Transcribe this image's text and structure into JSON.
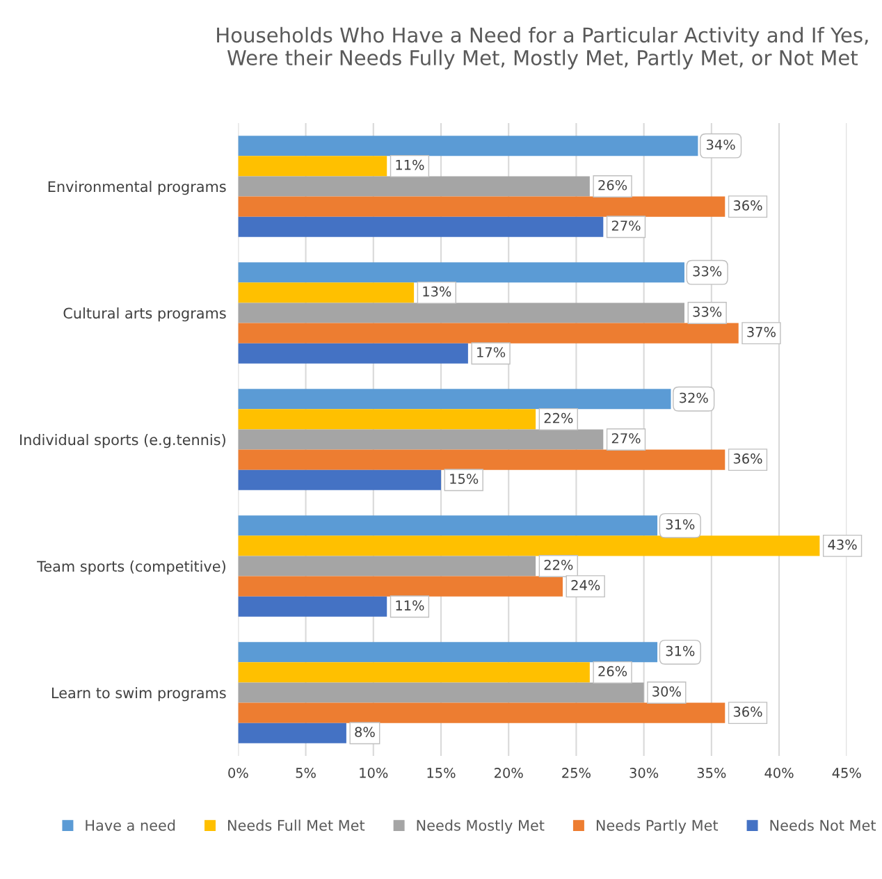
{
  "chart_data": {
    "type": "bar",
    "orientation": "horizontal",
    "title": "Households Who Have a Need for a Particular Activity and If Yes,\nWere their Needs Fully Met, Mostly Met, Partly Met, or Not Met",
    "categories": [
      "Environmental programs",
      "Cultural arts programs",
      "Individual sports (e.g.tennis)",
      "Team sports (competitive)",
      "Learn to swim programs"
    ],
    "series": [
      {
        "name": "Have a need",
        "color": "#5b9bd5",
        "values": [
          34,
          33,
          32,
          31,
          31
        ],
        "value_labels": [
          "34%",
          "33%",
          "32%",
          "31%",
          "31%"
        ]
      },
      {
        "name": "Needs Full Met Met",
        "color": "#ffc000",
        "values": [
          11,
          13,
          22,
          43,
          26
        ],
        "value_labels": [
          "11%",
          "13%",
          "22%",
          "43%",
          "26%"
        ]
      },
      {
        "name": "Needs Mostly Met",
        "color": "#a5a5a5",
        "values": [
          26,
          33,
          27,
          22,
          30
        ],
        "value_labels": [
          "26%",
          "33%",
          "27%",
          "22%",
          "30%"
        ]
      },
      {
        "name": "Needs Partly Met",
        "color": "#ed7d31",
        "values": [
          36,
          37,
          36,
          24,
          36
        ],
        "value_labels": [
          "36%",
          "37%",
          "36%",
          "24%",
          "36%"
        ]
      },
      {
        "name": "Needs Not Met",
        "color": "#4472c4",
        "values": [
          27,
          17,
          15,
          11,
          8
        ],
        "value_labels": [
          "27%",
          "17%",
          "15%",
          "11%",
          "8%"
        ]
      }
    ],
    "xlim": [
      0,
      45
    ],
    "xticks": [
      {
        "value": 0,
        "label": "0%"
      },
      {
        "value": 5,
        "label": "5%"
      },
      {
        "value": 10,
        "label": "10%"
      },
      {
        "value": 15,
        "label": "15%"
      },
      {
        "value": 20,
        "label": "20%"
      },
      {
        "value": 25,
        "label": "25%"
      },
      {
        "value": 30,
        "label": "30%"
      },
      {
        "value": 35,
        "label": "35%"
      },
      {
        "value": 40,
        "label": "40%"
      },
      {
        "value": 45,
        "label": "45%"
      }
    ],
    "grid": "x",
    "legend": "bottom"
  }
}
